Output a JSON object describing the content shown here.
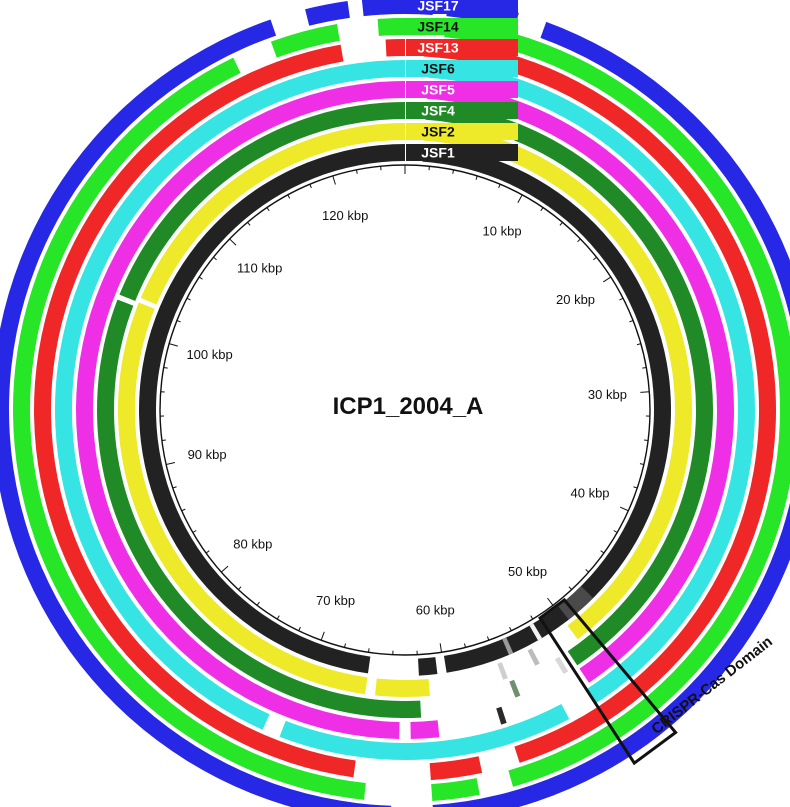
{
  "reference_genome": "ICP1_2004_A",
  "scale": {
    "unit": "kbp",
    "genome_length_kbp": 126,
    "tick_labels": [
      "10 kbp",
      "20 kbp",
      "30 kbp",
      "40 kbp",
      "50 kbp",
      "60 kbp",
      "70 kbp",
      "80 kbp",
      "90 kbp",
      "100 kbp",
      "110 kbp",
      "120 kbp"
    ]
  },
  "rings": [
    {
      "name": "JSF1",
      "color": "#222222",
      "label_color": "#ffffff"
    },
    {
      "name": "JSF2",
      "color": "#eeea2a",
      "label_color": "#111111"
    },
    {
      "name": "JSF4",
      "color": "#1f8a26",
      "label_color": "#ffffff"
    },
    {
      "name": "JSF5",
      "color": "#ee2fe6",
      "label_color": "#ffffff"
    },
    {
      "name": "JSF6",
      "color": "#36e4e4",
      "label_color": "#111111"
    },
    {
      "name": "JSF13",
      "color": "#ef2727",
      "label_color": "#ffffff"
    },
    {
      "name": "JSF14",
      "color": "#27e627",
      "label_color": "#111111"
    },
    {
      "name": "JSF17",
      "color": "#2727e6",
      "label_color": "#ffffff"
    }
  ],
  "annotation": {
    "label": "CRISPR-Cas Domain",
    "color": "#111111"
  }
}
